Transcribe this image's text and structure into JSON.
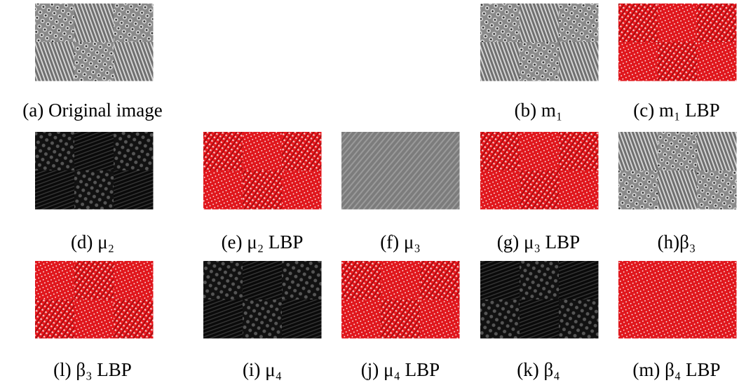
{
  "panels": [
    {
      "caption": "(a) Original image"
    },
    {
      "caption": "(b) m₁"
    },
    {
      "caption": "(c) m₁ LBP"
    },
    {
      "caption": "(d) μ₂"
    },
    {
      "caption": "(e) μ₂ LBP"
    },
    {
      "caption": "(f) μ₃"
    },
    {
      "caption": "(g) μ₃ LBP"
    },
    {
      "caption": "(h)β₃"
    },
    {
      "caption": "(l) β₃ LBP"
    },
    {
      "caption": "(i) μ₄"
    },
    {
      "caption": "(j) μ₄ LBP"
    },
    {
      "caption": "(k) β₄"
    },
    {
      "caption": "(m) β₄ LBP"
    }
  ]
}
